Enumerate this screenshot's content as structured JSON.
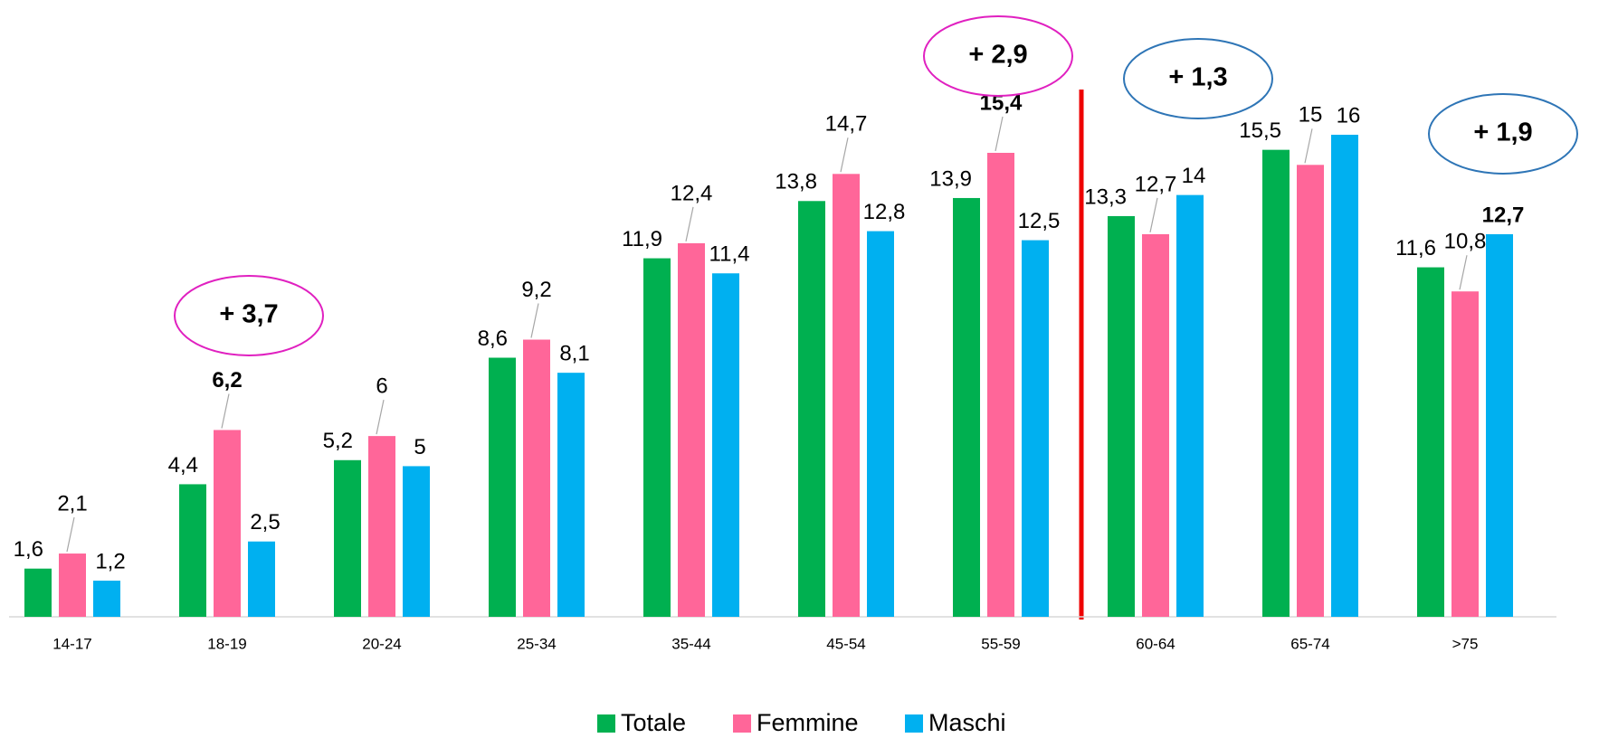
{
  "chart_data": {
    "type": "bar",
    "categories": [
      "14-17",
      "18-19",
      "20-24",
      "25-34",
      "35-44",
      "45-54",
      "55-59",
      "60-64",
      "65-74",
      ">75"
    ],
    "series": [
      {
        "name": "Totale",
        "color": "#00b050",
        "values": [
          1.6,
          4.4,
          5.2,
          8.6,
          11.9,
          13.8,
          13.9,
          13.3,
          15.5,
          11.6
        ],
        "value_labels": [
          "1,6",
          "4,4",
          "5,2",
          "8,6",
          "11,9",
          "13,8",
          "13,9",
          "13,3",
          "15,5",
          "11,6"
        ],
        "bold": [
          false,
          false,
          false,
          false,
          false,
          false,
          false,
          false,
          false,
          false
        ]
      },
      {
        "name": "Femmine",
        "color": "#ff6699",
        "values": [
          2.1,
          6.2,
          6,
          9.2,
          12.4,
          14.7,
          15.4,
          12.7,
          15,
          10.8
        ],
        "value_labels": [
          "2,1",
          "6,2",
          "6",
          "9,2",
          "12,4",
          "14,7",
          "15,4",
          "12,7",
          "15",
          "10,8"
        ],
        "bold": [
          false,
          true,
          false,
          false,
          false,
          false,
          true,
          false,
          false,
          false
        ]
      },
      {
        "name": "Maschi",
        "color": "#00b0f0",
        "values": [
          1.2,
          2.5,
          5,
          8.1,
          11.4,
          12.8,
          12.5,
          14,
          16,
          12.7
        ],
        "value_labels": [
          "1,2",
          "2,5",
          "5",
          "8,1",
          "11,4",
          "12,8",
          "12,5",
          "14",
          "16",
          "12,7"
        ],
        "bold": [
          false,
          false,
          false,
          false,
          false,
          false,
          false,
          false,
          false,
          true
        ]
      }
    ],
    "annotations": [
      "+ 3,7",
      "+ 2,9",
      "+ 1,3",
      "+ 1,9"
    ],
    "legend": "bottom"
  }
}
